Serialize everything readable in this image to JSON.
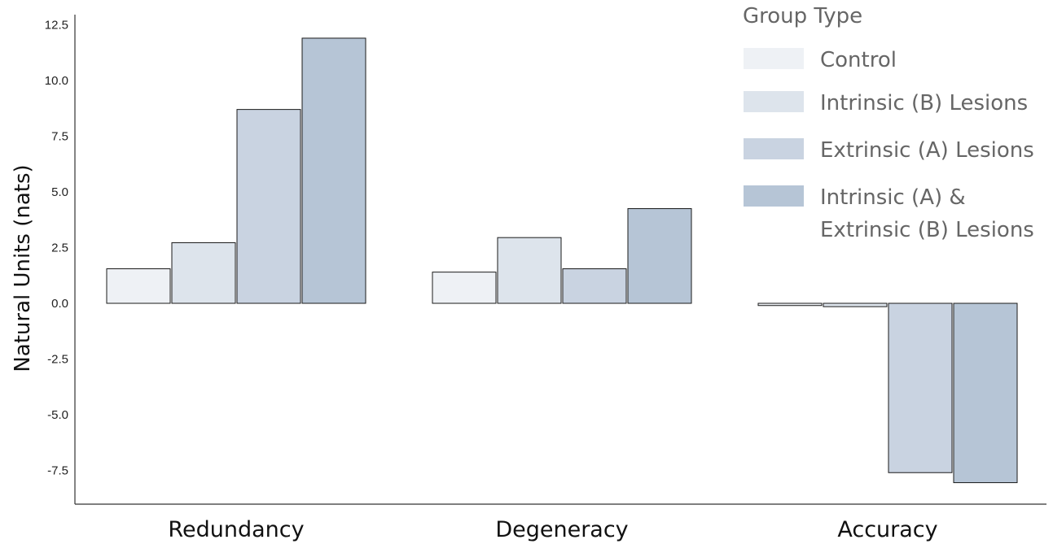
{
  "chart_data": {
    "type": "bar",
    "ylabel": "Natural Units (nats)",
    "categories": [
      "Redundancy",
      "Degeneracy",
      "Accuracy"
    ],
    "yticks": [
      "12.5",
      "10.0",
      "7.5",
      "5.0",
      "2.5",
      "0.0",
      "-2.5",
      "-5.0",
      "-7.5"
    ],
    "ylim": [
      -9.0,
      13.0
    ],
    "grid": false,
    "legend_position": "top-right",
    "legend": {
      "title": "Group Type"
    },
    "series": [
      {
        "name": "Control",
        "values": [
          1.55,
          1.4,
          -0.1
        ],
        "color": "#eef1f5"
      },
      {
        "name": "Intrinsic (B) Lesions",
        "values": [
          2.72,
          2.95,
          -0.15
        ],
        "color": "#dde4ec"
      },
      {
        "name": "Extrinsic (A) Lesions",
        "values": [
          8.7,
          1.55,
          -7.6
        ],
        "color": "#c9d3e1"
      },
      {
        "name": "Intrinsic (A) & Extrinsic (B) Lesions",
        "name_lines": [
          "Intrinsic (A) &",
          "Extrinsic (B) Lesions"
        ],
        "values": [
          11.9,
          4.25,
          -8.05
        ],
        "color": "#b6c5d6"
      }
    ]
  }
}
